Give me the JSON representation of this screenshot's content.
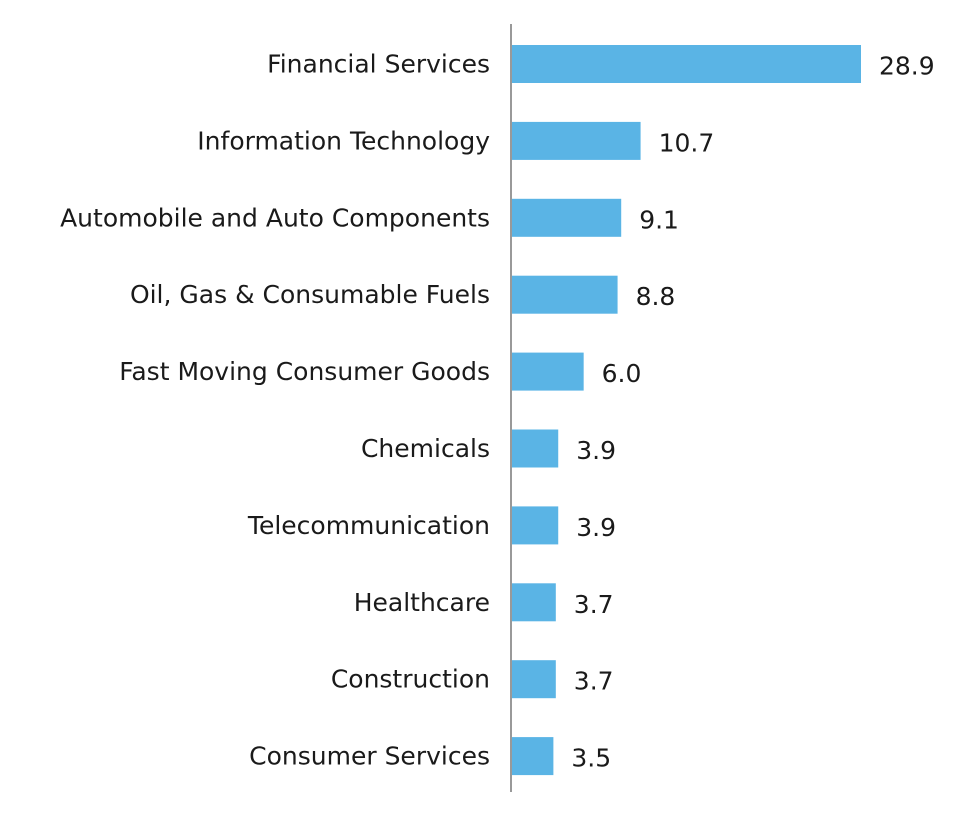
{
  "chart_data": {
    "type": "bar",
    "orientation": "horizontal",
    "categories": [
      "Financial Services",
      "Information Technology",
      "Automobile and Auto Components",
      "Oil, Gas & Consumable Fuels",
      "Fast Moving Consumer Goods",
      "Chemicals",
      "Telecommunication",
      "Healthcare",
      "Construction",
      "Consumer Services"
    ],
    "values": [
      28.9,
      10.7,
      9.1,
      8.8,
      6.0,
      3.9,
      3.9,
      3.7,
      3.7,
      3.5
    ],
    "value_labels": [
      "28.9",
      "10.7",
      "9.1",
      "8.8",
      "6.0",
      "3.9",
      "3.9",
      "3.7",
      "3.7",
      "3.5"
    ],
    "title": "",
    "xlabel": "",
    "ylabel": "",
    "xlim": [
      0,
      28.9
    ],
    "grid": false,
    "legend": "none",
    "colors": {
      "bar": "#5AB4E5",
      "axis": "#999999",
      "text": "#1a1a1a"
    }
  }
}
